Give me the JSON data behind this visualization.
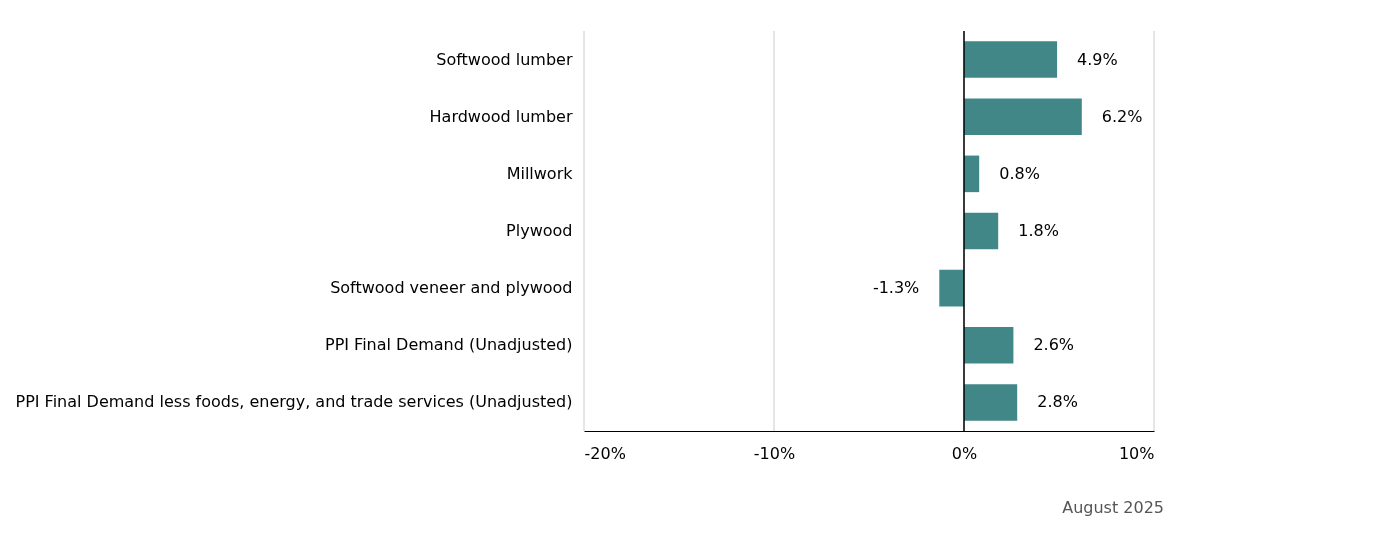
{
  "chart_data": {
    "type": "bar",
    "orientation": "horizontal",
    "categories": [
      "Softwood lumber",
      "Hardwood lumber",
      "Millwork",
      "Plywood",
      "Softwood veneer and plywood",
      "PPI Final Demand (Unadjusted)",
      "PPI Final Demand less foods, energy, and trade services (Unadjusted)"
    ],
    "values": [
      4.9,
      6.2,
      0.8,
      1.8,
      -1.3,
      2.6,
      2.8
    ],
    "value_labels": [
      "4.9%",
      "6.2%",
      "0.8%",
      "1.8%",
      "-1.3%",
      "2.6%",
      "2.8%"
    ],
    "color": "#428787",
    "xlim": [
      -20,
      10
    ],
    "xticks": [
      {
        "value": -20,
        "label": "-20%"
      },
      {
        "value": -10,
        "label": "-10%"
      },
      {
        "value": 0,
        "label": "0%"
      },
      {
        "value": 10,
        "label": "10%"
      }
    ],
    "grid": "x",
    "ref_lines": [
      {
        "axis": "x",
        "value": 0,
        "color": "#000000"
      }
    ],
    "annotations": [
      "August 2025"
    ]
  }
}
